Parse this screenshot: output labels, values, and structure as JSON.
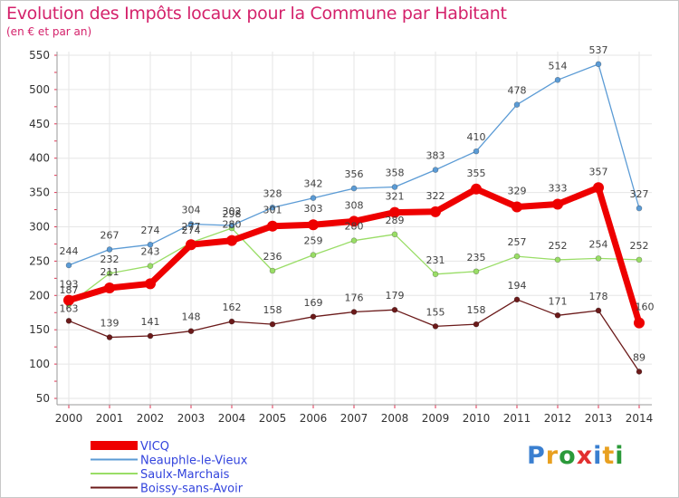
{
  "header": {
    "title": "Evolution des Impôts locaux pour la Commune par Habitant",
    "subtitle": "(en € et par an)"
  },
  "logo": {
    "text": "Proxiti",
    "letter_colors": [
      "#3a7fd0",
      "#e8a020",
      "#2b9a3a",
      "#e23030",
      "#3a7fd0",
      "#e8a020",
      "#2b9a3a"
    ]
  },
  "colors": {
    "background": "#ffffff",
    "grid": "#e6e6e6",
    "axis": "#999999",
    "tick_mark": "#e23050",
    "legend_text": "#3344dd"
  },
  "chart_data": {
    "type": "line",
    "title": "Evolution des Impôts locaux pour la Commune par Habitant",
    "subtitle": "(en € et par an)",
    "x": [
      2000,
      2001,
      2002,
      2003,
      2004,
      2005,
      2006,
      2007,
      2008,
      2009,
      2010,
      2011,
      2012,
      2013,
      2014
    ],
    "ylim": [
      50,
      550
    ],
    "yticks": [
      50,
      100,
      150,
      200,
      250,
      300,
      350,
      400,
      450,
      500,
      550
    ],
    "grid": true,
    "legend_position": "bottom-left",
    "series": [
      {
        "name": "VICQ",
        "color": "#ee0000",
        "style": "thick",
        "values": [
          193,
          211,
          217,
          274,
          280,
          301,
          303,
          308,
          321,
          322,
          355,
          329,
          333,
          357,
          160
        ],
        "labels": [
          "193",
          "211",
          "",
          "274",
          "280",
          "301",
          "303",
          "308",
          "321",
          "322",
          "355",
          "329",
          "333",
          "357",
          "160"
        ]
      },
      {
        "name": "Neauphle-le-Vieux",
        "color": "#5b9bd5",
        "style": "thin",
        "values": [
          244,
          267,
          274,
          304,
          302,
          328,
          342,
          356,
          358,
          383,
          410,
          478,
          514,
          537,
          327
        ],
        "labels": [
          "244",
          "267",
          "274",
          "304",
          "302",
          "328",
          "342",
          "356",
          "358",
          "383",
          "410",
          "478",
          "514",
          "537",
          "327"
        ]
      },
      {
        "name": "Saulx-Marchais",
        "color": "#99dd66",
        "style": "thin",
        "values": [
          187,
          232,
          243,
          277,
          298,
          236,
          259,
          280,
          289,
          231,
          235,
          257,
          252,
          254,
          252
        ],
        "labels": [
          "187",
          "232",
          "243",
          "277",
          "298",
          "236",
          "259",
          "280",
          "289",
          "231",
          "235",
          "257",
          "252",
          "254",
          "252"
        ]
      },
      {
        "name": "Boissy-sans-Avoir",
        "color": "#6b1a1a",
        "style": "thin",
        "values": [
          163,
          139,
          141,
          148,
          162,
          158,
          169,
          176,
          179,
          155,
          158,
          194,
          171,
          178,
          89
        ],
        "labels": [
          "163",
          "139",
          "141",
          "148",
          "162",
          "158",
          "169",
          "176",
          "179",
          "155",
          "158",
          "194",
          "171",
          "178",
          "89"
        ]
      }
    ]
  }
}
